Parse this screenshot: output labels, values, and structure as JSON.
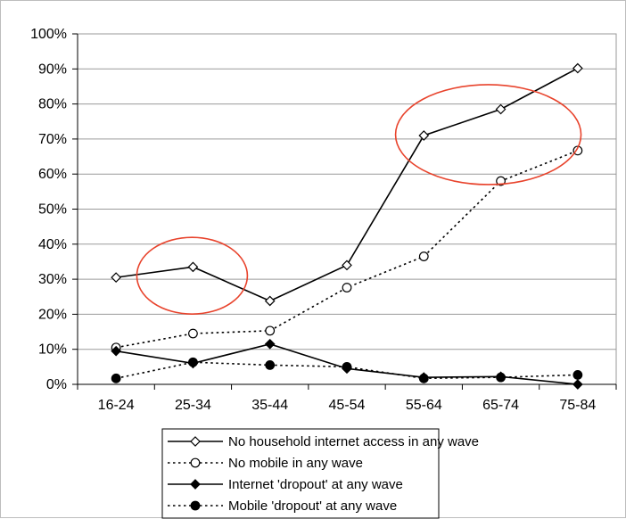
{
  "chart_data": {
    "type": "line",
    "categories": [
      "16-24",
      "25-34",
      "35-44",
      "45-54",
      "55-64",
      "65-74",
      "75-84"
    ],
    "ylim": [
      0,
      100
    ],
    "yticks": [
      "0%",
      "10%",
      "20%",
      "30%",
      "40%",
      "50%",
      "60%",
      "70%",
      "80%",
      "90%",
      "100%"
    ],
    "grid": true,
    "legend_position": "bottom",
    "series": [
      {
        "name": "No household internet access in any wave",
        "values": [
          30.5,
          33.5,
          23.8,
          34,
          71,
          78.5,
          90.2
        ],
        "marker": "diamond-open",
        "line": "solid",
        "color": "#000000"
      },
      {
        "name": "No mobile in any wave",
        "values": [
          10.5,
          14.5,
          15.3,
          27.6,
          36.5,
          58,
          66.7
        ],
        "marker": "circle-open",
        "line": "dotted",
        "color": "#000000"
      },
      {
        "name": "Internet 'dropout' at any wave",
        "values": [
          9.5,
          6,
          11.5,
          4.5,
          2,
          2.2,
          0
        ],
        "marker": "diamond-filled",
        "line": "solid",
        "color": "#000000"
      },
      {
        "name": "Mobile 'dropout' at any wave",
        "values": [
          1.7,
          6.3,
          5.5,
          5,
          1.7,
          2,
          2.7
        ],
        "marker": "circle-filled",
        "line": "dotted",
        "color": "#000000"
      }
    ],
    "annotations": [
      {
        "type": "ellipse",
        "color": "#e8432c",
        "x_center": "25-34",
        "y_center": 31
      },
      {
        "type": "ellipse",
        "color": "#e8432c",
        "x_center": "65-74",
        "y_center": 71
      }
    ]
  }
}
